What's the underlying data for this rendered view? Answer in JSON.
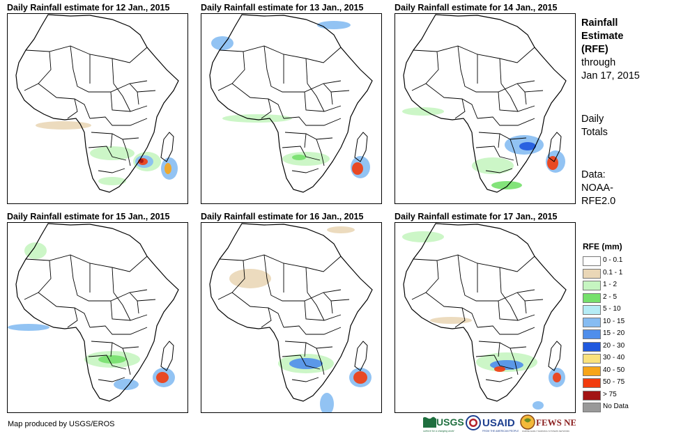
{
  "panels": [
    {
      "title": "Daily Rainfall estimate for 12 Jan., 2015"
    },
    {
      "title": "Daily Rainfall estimate for 13 Jan., 2015"
    },
    {
      "title": "Daily Rainfall estimate for 14 Jan., 2015"
    },
    {
      "title": "Daily Rainfall estimate for 15 Jan., 2015"
    },
    {
      "title": "Daily Rainfall estimate for 16 Jan., 2015"
    },
    {
      "title": "Daily Rainfall estimate for 17 Jan., 2015"
    }
  ],
  "sidebar": {
    "heading_line1": "Rainfall",
    "heading_line2": "Estimate",
    "heading_line3": "(RFE)",
    "through_line1": "through",
    "through_line2": "Jan 17, 2015",
    "daily_line1": "Daily",
    "daily_line2": "Totals",
    "data_line1": "Data:",
    "data_line2": "NOAA-",
    "data_line3": "RFE2.0"
  },
  "legend": {
    "title": "RFE (mm)",
    "items": [
      {
        "label": "0 - 0.1",
        "color": "#ffffff"
      },
      {
        "label": "0.1 - 1",
        "color": "#ead7b7"
      },
      {
        "label": "1 - 2",
        "color": "#c6f5c1"
      },
      {
        "label": "2 - 5",
        "color": "#76e06c"
      },
      {
        "label": "5 - 10",
        "color": "#b5ecf5"
      },
      {
        "label": "10 - 15",
        "color": "#86bcf2"
      },
      {
        "label": "15 - 20",
        "color": "#4f8eeb"
      },
      {
        "label": "20 - 30",
        "color": "#1f58de"
      },
      {
        "label": "30 - 40",
        "color": "#fae27d"
      },
      {
        "label": "40 - 50",
        "color": "#f7a51a"
      },
      {
        "label": "50 - 75",
        "color": "#f23c0e"
      },
      {
        "label": "> 75",
        "color": "#a21414"
      },
      {
        "label": "No Data",
        "color": "#999999"
      }
    ]
  },
  "footer": {
    "credit": "Map produced by USGS/EROS",
    "logo1": "USGS",
    "logo1_tag": "science for a changing world",
    "logo2": "USAID",
    "logo2_tag": "FROM THE AMERICAN PEOPLE",
    "logo3": "FEWS NET",
    "logo3_tag": "FAMINE EARLY WARNING SYSTEMS NETWORK"
  }
}
